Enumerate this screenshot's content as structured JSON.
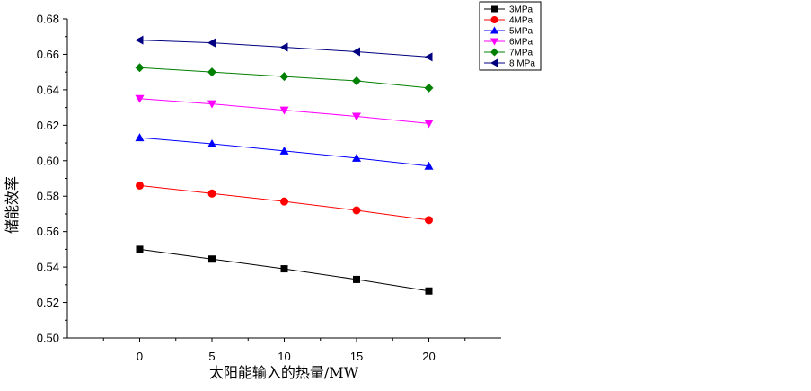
{
  "chart_data": {
    "type": "line",
    "title": "",
    "xlabel": "太阳能输入的热量/MW",
    "ylabel": "储能效率",
    "x": [
      0,
      5,
      10,
      15,
      20
    ],
    "xlim": [
      -5,
      25
    ],
    "ylim": [
      0.5,
      0.68
    ],
    "xticks": [
      0,
      5,
      10,
      15,
      20
    ],
    "yticks": [
      0.5,
      0.52,
      0.54,
      0.56,
      0.58,
      0.6,
      0.62,
      0.64,
      0.66,
      0.68
    ],
    "xtick_labels": [
      "0",
      "5",
      "10",
      "15",
      "20"
    ],
    "ytick_labels": [
      "0.50",
      "0.52",
      "0.54",
      "0.56",
      "0.58",
      "0.60",
      "0.62",
      "0.64",
      "0.66",
      "0.68"
    ],
    "grid": false,
    "legend_position": "top-right, outside plot area",
    "series": [
      {
        "name": "3MPa",
        "color": "#000000",
        "marker": "square",
        "values": [
          0.55,
          0.5445,
          0.539,
          0.533,
          0.5265
        ]
      },
      {
        "name": "4MPa",
        "color": "#ff0000",
        "marker": "circle",
        "values": [
          0.586,
          0.5815,
          0.577,
          0.572,
          0.5665
        ]
      },
      {
        "name": "5MPa",
        "color": "#0000ff",
        "marker": "triangle-up",
        "values": [
          0.613,
          0.6095,
          0.6055,
          0.6015,
          0.597
        ]
      },
      {
        "name": "6MPa",
        "color": "#ff00ff",
        "marker": "triangle-down",
        "values": [
          0.635,
          0.632,
          0.6285,
          0.625,
          0.621
        ]
      },
      {
        "name": "7MPa",
        "color": "#008000",
        "marker": "diamond",
        "values": [
          0.6525,
          0.65,
          0.6475,
          0.645,
          0.641
        ]
      },
      {
        "name": "8 MPa",
        "color": "#000080",
        "marker": "triangle-left",
        "values": [
          0.668,
          0.6665,
          0.664,
          0.6615,
          0.6585
        ]
      }
    ]
  }
}
